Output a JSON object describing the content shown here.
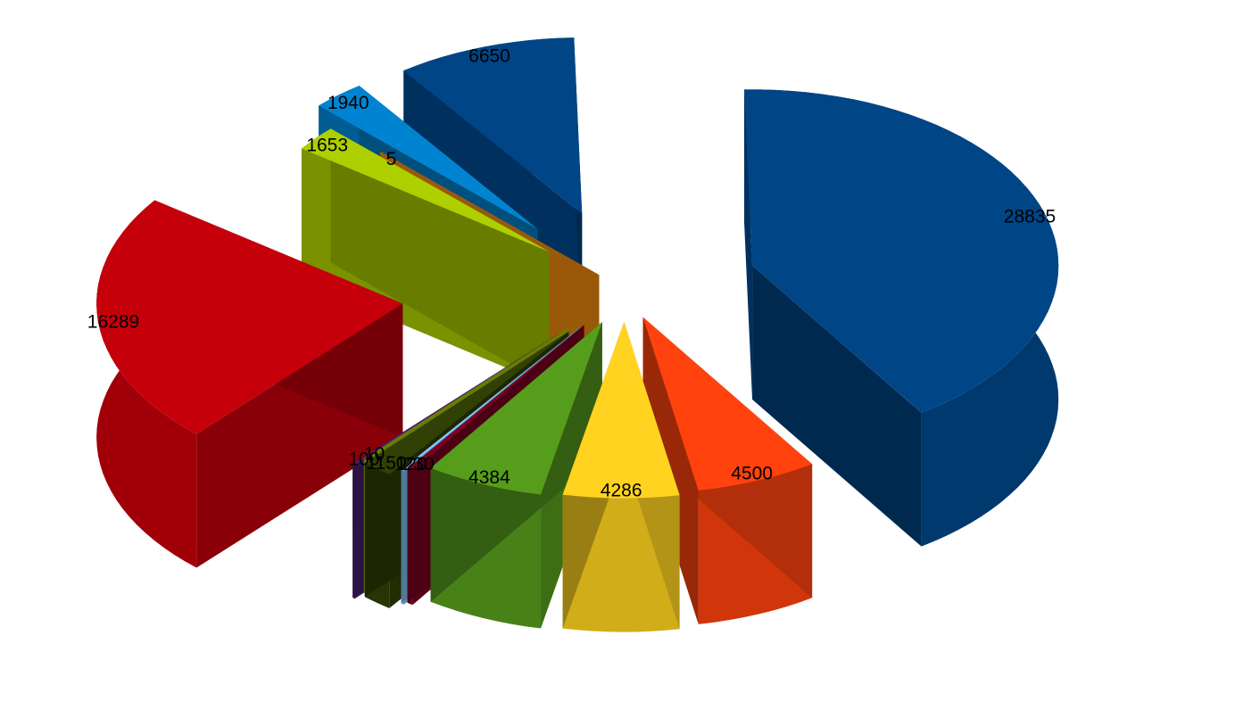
{
  "chart_data": {
    "type": "pie",
    "style": "3d-exploded",
    "title": "",
    "values": [
      28835,
      4500,
      4286,
      4384,
      230,
      120,
      1150,
      10,
      100,
      16289,
      1653,
      5,
      1940,
      6650
    ],
    "labels": [
      "28835",
      "4500",
      "4286",
      "4384",
      "230",
      "120",
      "1150",
      "10",
      "100",
      "16289",
      "1653",
      "5",
      "1940",
      "6650"
    ],
    "colors": [
      "#004586",
      "#ff420e",
      "#ffd320",
      "#579d1c",
      "#7e0021",
      "#83caff",
      "#314004",
      "#aecf00",
      "#4b1f6f",
      "#c5000b",
      "#aecf00",
      "#ff950e",
      "#0084d1",
      "#004586"
    ],
    "legend": "none"
  }
}
